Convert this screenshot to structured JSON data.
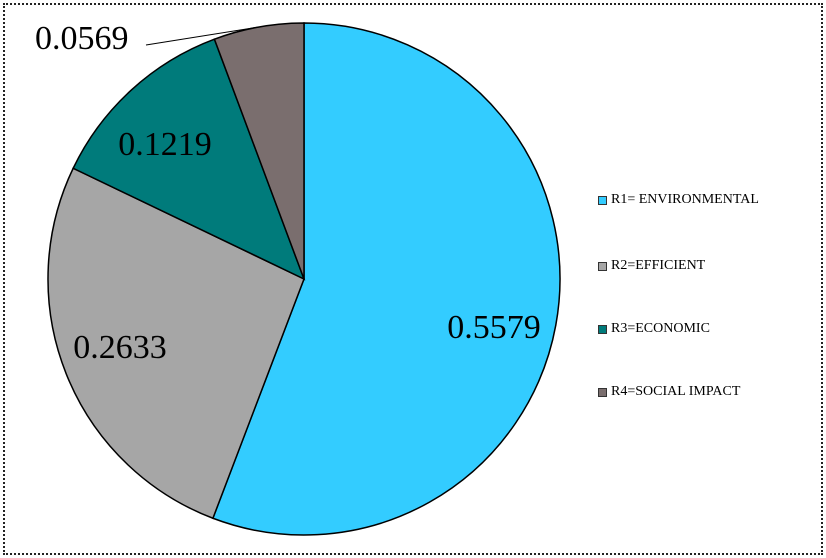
{
  "chart_data": {
    "type": "pie",
    "categories": [
      "R1= ENVIRONMENTAL",
      "R2=EFFICIENT",
      "R3=ECONOMIC",
      "R4=SOCIAL IMPACT"
    ],
    "values": [
      0.5579,
      0.2633,
      0.1219,
      0.0569
    ],
    "value_labels": [
      "0.5579",
      "0.2633",
      "0.1219",
      "0.0569"
    ],
    "colors": [
      "#33ccff",
      "#a6a6a6",
      "#007b7b",
      "#7a6e6e"
    ],
    "start": "12 o'clock, clockwise",
    "legend": "right",
    "title": ""
  }
}
